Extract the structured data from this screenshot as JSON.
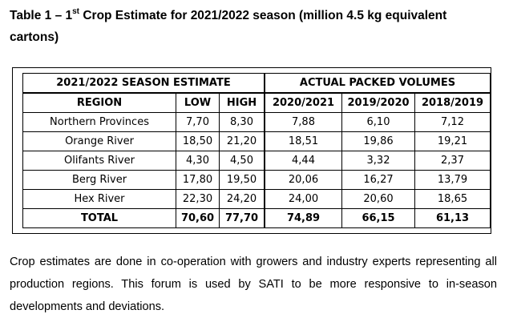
{
  "caption": {
    "prefix": "Table 1 – 1",
    "superscript": "st",
    "rest": " Crop Estimate for 2021/2022 season (million 4.5 kg equivalent cartons)"
  },
  "table": {
    "group_headers": {
      "estimate": "2021/2022 SEASON ESTIMATE",
      "actual": "ACTUAL PACKED VOLUMES"
    },
    "columns": [
      "REGION",
      "LOW",
      "HIGH",
      "2020/2021",
      "2019/2020",
      "2018/2019"
    ],
    "rows": [
      [
        "Northern Provinces",
        "7,70",
        "8,30",
        "7,88",
        "6,10",
        "7,12"
      ],
      [
        "Orange River",
        "18,50",
        "21,20",
        "18,51",
        "19,86",
        "19,21"
      ],
      [
        "Olifants River",
        "4,30",
        "4,50",
        "4,44",
        "3,32",
        "2,37"
      ],
      [
        "Berg River",
        "17,80",
        "19,50",
        "20,06",
        "16,27",
        "13,79"
      ],
      [
        "Hex River",
        "22,30",
        "24,20",
        "24,00",
        "20,60",
        "18,65"
      ]
    ],
    "total": [
      "TOTAL",
      "70,60",
      "77,70",
      "74,89",
      "66,15",
      "61,13"
    ]
  },
  "paragraph": "Crop estimates are done in co-operation with growers and industry experts representing all production regions. This forum is used by SATI to be more responsive to in-season developments and deviations."
}
